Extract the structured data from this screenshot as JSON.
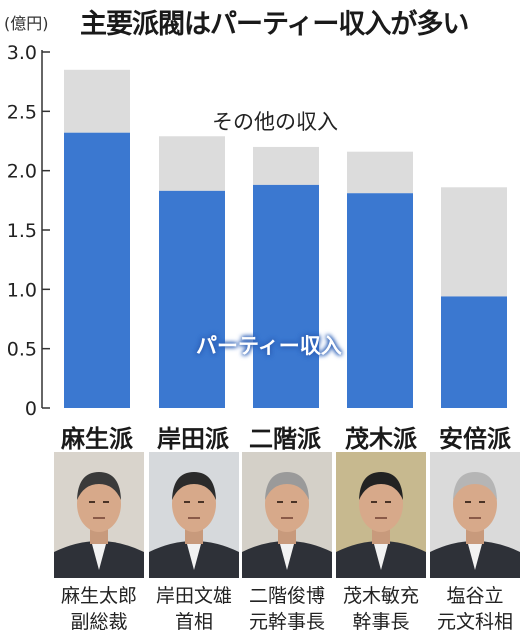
{
  "header": {
    "title": "主要派閥はパーティー収入が多い",
    "unit": "(億円)"
  },
  "annotations": {
    "other_income": "その他の収入",
    "party_income": "パーティー収入"
  },
  "colors": {
    "party": "#3b78d0",
    "other": "#dcdcdc",
    "axis": "#333333"
  },
  "factions": [
    {
      "name": "麻生派",
      "person": "麻生太郎",
      "role": "副総裁"
    },
    {
      "name": "岸田派",
      "person": "岸田文雄",
      "role": "首相"
    },
    {
      "name": "二階派",
      "person": "二階俊博",
      "role": "元幹事長"
    },
    {
      "name": "茂木派",
      "person": "茂木敏充",
      "role": "幹事長"
    },
    {
      "name": "安倍派",
      "person": "塩谷立",
      "role": "元文科相"
    }
  ],
  "chart_data": {
    "type": "bar",
    "stacked": true,
    "title": "主要派閥はパーティー収入が多い",
    "ylabel": "(億円)",
    "categories": [
      "麻生派",
      "岸田派",
      "二階派",
      "茂木派",
      "安倍派"
    ],
    "series": [
      {
        "name": "パーティー収入",
        "values": [
          2.32,
          1.83,
          1.88,
          1.81,
          0.94
        ]
      },
      {
        "name": "その他の収入",
        "values": [
          0.53,
          0.46,
          0.32,
          0.35,
          0.92
        ]
      }
    ],
    "ylim": [
      0,
      3.0
    ],
    "yticks": [
      "0",
      "0.5",
      "1.0",
      "1.5",
      "2.0",
      "2.5",
      "3.0"
    ],
    "grid": false,
    "legend": "inline labels"
  }
}
